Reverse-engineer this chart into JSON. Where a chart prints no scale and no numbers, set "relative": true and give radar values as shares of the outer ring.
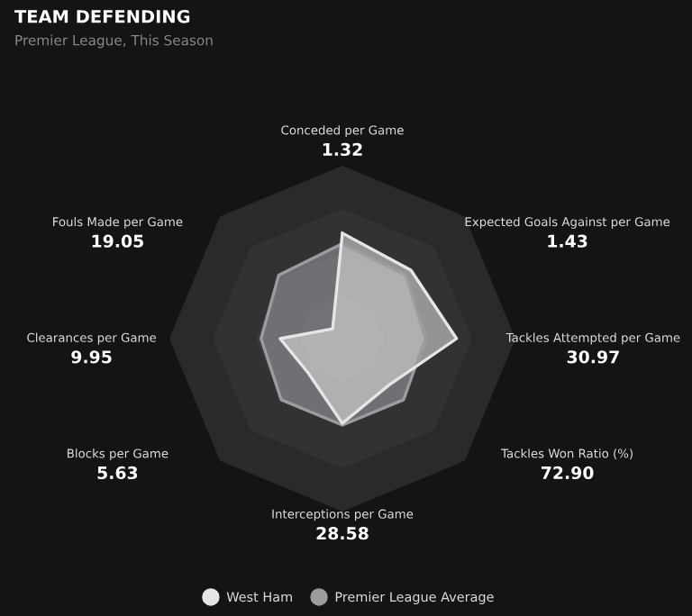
{
  "chart_data": {
    "type": "radar",
    "title": "TEAM DEFENDING",
    "subtitle": "Premier League, This Season",
    "relative": true,
    "categories": [
      "Conceded per Game",
      "Expected Goals Against per Game",
      "Tackles Attempted per Game",
      "Tackles Won Ratio (%)",
      "Interceptions per Game",
      "Blocks per Game",
      "Clearances per Game",
      "Fouls Made per Game"
    ],
    "annotations": [
      "1.32",
      "1.43",
      "30.97",
      "72.90",
      "28.58",
      "5.63",
      "9.95",
      "19.05"
    ],
    "series": [
      {
        "name": "Premier League Average",
        "color": "#9c9ca0",
        "values": [
          0.55,
          0.52,
          0.48,
          0.5,
          0.5,
          0.5,
          0.47,
          0.52
        ]
      },
      {
        "name": "West Ham",
        "color": "#e6e6e8",
        "values": [
          0.61,
          0.56,
          0.66,
          0.38,
          0.49,
          0.28,
          0.36,
          0.08
        ]
      }
    ],
    "grid": true,
    "legend": "bottom"
  }
}
